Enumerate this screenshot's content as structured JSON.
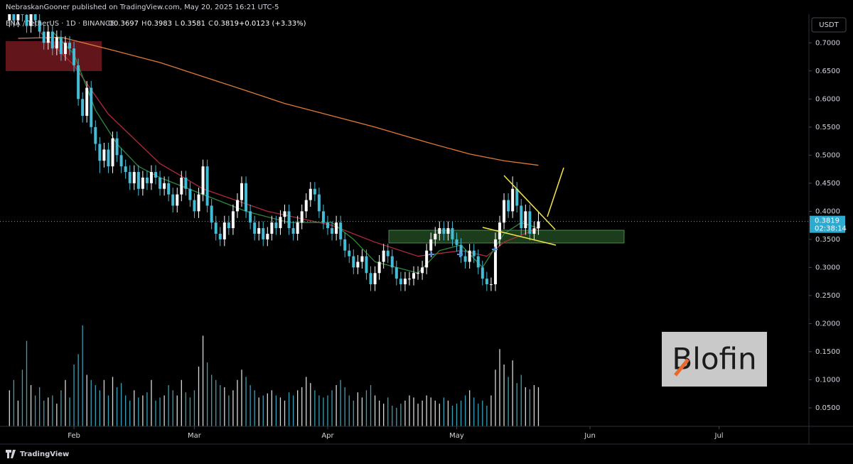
{
  "header": {
    "publisher": "NebraskanGooner published on TradingView.com, May 20, 2025 16:21 UTC-5",
    "ohlc_keys": [
      "O",
      "H",
      "L",
      "C"
    ],
    "change": "+0.0123 (+3.33%)",
    "currency": "USDT",
    "countdown": "02:38:14",
    "brand": "TradingView",
    "logo_text": "Blofin"
  },
  "chart_data": {
    "type": "candlestick",
    "symbol": "ENA / TetherUS · 1D · BINANCE",
    "x": [
      -15,
      -14,
      -13,
      -12,
      -11,
      -10,
      -9,
      -8,
      -7,
      -6,
      -5,
      -4,
      -3,
      -2,
      -1,
      0,
      1,
      2,
      3,
      4,
      5,
      6,
      7,
      8,
      9,
      10,
      11,
      12,
      13,
      14,
      15,
      16,
      17,
      18,
      19,
      20,
      21,
      22,
      23,
      24,
      25,
      26,
      27,
      28,
      29,
      30,
      31,
      32,
      33,
      34,
      35,
      36,
      37,
      38,
      39,
      40,
      41,
      42,
      43,
      44,
      45,
      46,
      47,
      48,
      49,
      50,
      51,
      52,
      53,
      54,
      55,
      56,
      57,
      58,
      59,
      60,
      61,
      62,
      63,
      64,
      65,
      66,
      67,
      68,
      69,
      70,
      71,
      72,
      73,
      74,
      75,
      76,
      77,
      78,
      79,
      80,
      81,
      82,
      83,
      84,
      85,
      86,
      87,
      88,
      89,
      90,
      91,
      92,
      93,
      94,
      95,
      96,
      97,
      98,
      99,
      100,
      101,
      102,
      103,
      104,
      105,
      106,
      107,
      108
    ],
    "open": [
      0.74,
      0.76,
      0.74,
      0.78,
      0.75,
      0.73,
      0.76,
      0.74,
      0.72,
      0.7,
      0.72,
      0.69,
      0.71,
      0.68,
      0.7,
      0.69,
      0.66,
      0.6,
      0.57,
      0.62,
      0.55,
      0.52,
      0.49,
      0.51,
      0.48,
      0.53,
      0.5,
      0.48,
      0.47,
      0.45,
      0.47,
      0.44,
      0.46,
      0.45,
      0.47,
      0.46,
      0.44,
      0.45,
      0.43,
      0.41,
      0.43,
      0.46,
      0.44,
      0.42,
      0.4,
      0.43,
      0.48,
      0.41,
      0.38,
      0.36,
      0.35,
      0.38,
      0.37,
      0.4,
      0.42,
      0.45,
      0.4,
      0.38,
      0.36,
      0.37,
      0.35,
      0.36,
      0.38,
      0.37,
      0.39,
      0.4,
      0.37,
      0.36,
      0.38,
      0.4,
      0.42,
      0.44,
      0.43,
      0.4,
      0.38,
      0.37,
      0.36,
      0.38,
      0.35,
      0.33,
      0.32,
      0.3,
      0.31,
      0.32,
      0.29,
      0.27,
      0.29,
      0.31,
      0.33,
      0.32,
      0.3,
      0.28,
      0.27,
      0.28,
      0.28,
      0.29,
      0.29,
      0.3,
      0.33,
      0.35,
      0.36,
      0.37,
      0.36,
      0.37,
      0.35,
      0.34,
      0.32,
      0.31,
      0.33,
      0.32,
      0.3,
      0.28,
      0.27,
      0.27,
      0.35,
      0.38,
      0.42,
      0.4,
      0.44,
      0.41,
      0.37,
      0.4,
      0.36,
      0.3697
    ],
    "high": [
      0.772,
      0.772,
      0.792,
      0.792,
      0.762,
      0.772,
      0.772,
      0.752,
      0.732,
      0.732,
      0.732,
      0.722,
      0.722,
      0.712,
      0.712,
      0.702,
      0.672,
      0.612,
      0.632,
      0.632,
      0.562,
      0.532,
      0.522,
      0.522,
      0.542,
      0.542,
      0.512,
      0.492,
      0.482,
      0.482,
      0.482,
      0.472,
      0.472,
      0.482,
      0.482,
      0.472,
      0.462,
      0.462,
      0.442,
      0.442,
      0.472,
      0.472,
      0.452,
      0.432,
      0.442,
      0.492,
      0.492,
      0.422,
      0.392,
      0.372,
      0.392,
      0.392,
      0.412,
      0.432,
      0.462,
      0.462,
      0.412,
      0.392,
      0.382,
      0.382,
      0.372,
      0.392,
      0.392,
      0.402,
      0.412,
      0.412,
      0.382,
      0.392,
      0.412,
      0.432,
      0.452,
      0.452,
      0.442,
      0.412,
      0.392,
      0.382,
      0.392,
      0.392,
      0.362,
      0.342,
      0.332,
      0.322,
      0.332,
      0.332,
      0.302,
      0.302,
      0.322,
      0.342,
      0.342,
      0.332,
      0.312,
      0.292,
      0.292,
      0.292,
      0.302,
      0.302,
      0.312,
      0.342,
      0.362,
      0.372,
      0.382,
      0.382,
      0.382,
      0.382,
      0.362,
      0.352,
      0.332,
      0.342,
      0.342,
      0.332,
      0.312,
      0.292,
      0.282,
      0.362,
      0.392,
      0.432,
      0.432,
      0.462,
      0.452,
      0.422,
      0.412,
      0.412,
      0.382,
      0.3983
    ],
    "low": [
      0.728,
      0.728,
      0.728,
      0.738,
      0.718,
      0.718,
      0.728,
      0.708,
      0.688,
      0.688,
      0.678,
      0.678,
      0.668,
      0.668,
      0.678,
      0.648,
      0.588,
      0.558,
      0.558,
      0.538,
      0.508,
      0.468,
      0.478,
      0.468,
      0.468,
      0.488,
      0.468,
      0.458,
      0.438,
      0.438,
      0.428,
      0.428,
      0.438,
      0.438,
      0.448,
      0.428,
      0.428,
      0.418,
      0.398,
      0.398,
      0.418,
      0.428,
      0.408,
      0.388,
      0.388,
      0.418,
      0.398,
      0.368,
      0.348,
      0.338,
      0.338,
      0.358,
      0.358,
      0.388,
      0.408,
      0.388,
      0.368,
      0.348,
      0.348,
      0.338,
      0.338,
      0.348,
      0.358,
      0.358,
      0.378,
      0.358,
      0.348,
      0.348,
      0.368,
      0.388,
      0.408,
      0.418,
      0.388,
      0.368,
      0.358,
      0.348,
      0.348,
      0.338,
      0.318,
      0.308,
      0.288,
      0.288,
      0.298,
      0.278,
      0.258,
      0.258,
      0.278,
      0.298,
      0.308,
      0.288,
      0.268,
      0.258,
      0.258,
      0.268,
      0.268,
      0.278,
      0.278,
      0.288,
      0.318,
      0.338,
      0.348,
      0.348,
      0.348,
      0.338,
      0.328,
      0.308,
      0.298,
      0.298,
      0.308,
      0.288,
      0.268,
      0.258,
      0.258,
      0.258,
      0.338,
      0.368,
      0.388,
      0.388,
      0.398,
      0.358,
      0.358,
      0.348,
      0.348,
      0.3581
    ],
    "close": [
      0.76,
      0.74,
      0.78,
      0.75,
      0.73,
      0.76,
      0.74,
      0.72,
      0.7,
      0.72,
      0.69,
      0.71,
      0.68,
      0.7,
      0.69,
      0.66,
      0.6,
      0.57,
      0.62,
      0.55,
      0.52,
      0.49,
      0.51,
      0.48,
      0.53,
      0.5,
      0.48,
      0.47,
      0.45,
      0.47,
      0.44,
      0.46,
      0.45,
      0.47,
      0.46,
      0.44,
      0.45,
      0.43,
      0.41,
      0.43,
      0.46,
      0.44,
      0.42,
      0.4,
      0.43,
      0.48,
      0.41,
      0.38,
      0.36,
      0.35,
      0.38,
      0.37,
      0.4,
      0.42,
      0.45,
      0.4,
      0.38,
      0.36,
      0.37,
      0.35,
      0.36,
      0.38,
      0.37,
      0.39,
      0.4,
      0.37,
      0.36,
      0.38,
      0.4,
      0.42,
      0.44,
      0.43,
      0.4,
      0.38,
      0.37,
      0.36,
      0.38,
      0.35,
      0.33,
      0.32,
      0.3,
      0.31,
      0.32,
      0.29,
      0.27,
      0.29,
      0.31,
      0.33,
      0.32,
      0.3,
      0.28,
      0.27,
      0.28,
      0.28,
      0.29,
      0.29,
      0.3,
      0.33,
      0.35,
      0.36,
      0.37,
      0.36,
      0.37,
      0.35,
      0.34,
      0.32,
      0.31,
      0.33,
      0.32,
      0.3,
      0.28,
      0.27,
      0.27,
      0.35,
      0.38,
      0.42,
      0.4,
      0.44,
      0.41,
      0.37,
      0.4,
      0.36,
      0.3697,
      0.3819
    ],
    "volume": [
      35,
      45,
      25,
      55,
      83,
      40,
      30,
      38,
      25,
      28,
      30,
      22,
      35,
      45,
      28,
      60,
      70,
      98,
      50,
      45,
      40,
      35,
      45,
      30,
      48,
      38,
      42,
      30,
      25,
      35,
      28,
      30,
      33,
      45,
      25,
      28,
      30,
      40,
      35,
      30,
      45,
      33,
      28,
      35,
      58,
      88,
      62,
      50,
      45,
      40,
      38,
      30,
      35,
      45,
      55,
      48,
      40,
      35,
      28,
      30,
      32,
      35,
      30,
      28,
      25,
      33,
      30,
      35,
      38,
      48,
      42,
      35,
      30,
      28,
      30,
      35,
      40,
      45,
      38,
      30,
      25,
      33,
      28,
      35,
      40,
      30,
      25,
      22,
      28,
      20,
      18,
      22,
      25,
      30,
      28,
      22,
      25,
      30,
      28,
      25,
      22,
      28,
      25,
      20,
      22,
      25,
      30,
      35,
      28,
      22,
      25,
      20,
      30,
      55,
      75,
      60,
      48,
      64,
      42,
      50,
      38,
      36,
      40,
      38
    ],
    "up_color": "#ffffff",
    "down_color": "#45bcd6",
    "lines": [
      {
        "color": "#e07a35",
        "x": [
          -13,
          -3,
          9,
          20,
          30,
          40,
          49,
          60,
          70,
          82,
          92,
          100,
          108
        ],
        "values": [
          0.708,
          0.71,
          0.687,
          0.665,
          0.64,
          0.615,
          0.592,
          0.57,
          0.55,
          0.523,
          0.502,
          0.49,
          0.482
        ]
      },
      {
        "color": "#b3283a",
        "x": [
          -8,
          0,
          8,
          20,
          30,
          45,
          60,
          70,
          80,
          90,
          96,
          100,
          108
        ],
        "values": [
          0.72,
          0.66,
          0.573,
          0.485,
          0.44,
          0.4,
          0.375,
          0.345,
          0.32,
          0.33,
          0.32,
          0.345,
          0.37
        ]
      },
      {
        "color": "#2e8b3a",
        "x": [
          -5,
          0,
          5,
          10,
          15,
          20,
          30,
          40,
          50,
          60,
          65,
          70,
          75,
          80,
          85,
          90,
          95,
          100,
          104,
          108
        ],
        "values": [
          0.72,
          0.68,
          0.58,
          0.52,
          0.48,
          0.46,
          0.43,
          0.4,
          0.38,
          0.38,
          0.35,
          0.31,
          0.3,
          0.29,
          0.33,
          0.34,
          0.3,
          0.36,
          0.38,
          0.37
        ]
      }
    ],
    "xlim": [
      -17.2,
      170.9
    ],
    "xticks": [
      {
        "value": 0,
        "label": "Feb"
      },
      {
        "value": 28,
        "label": "Mar"
      },
      {
        "value": 59,
        "label": "Apr"
      },
      {
        "value": 89,
        "label": "May"
      },
      {
        "value": 120,
        "label": "Jun"
      },
      {
        "value": 150,
        "label": "Jul"
      }
    ],
    "ylim": [
      0.017,
      0.751
    ],
    "yticks": [
      {
        "value": 0.05,
        "label": "0.0500"
      },
      {
        "value": 0.1,
        "label": "0.1000"
      },
      {
        "value": 0.15,
        "label": "0.1500"
      },
      {
        "value": 0.2,
        "label": "0.2000"
      },
      {
        "value": 0.25,
        "label": "0.2500"
      },
      {
        "value": 0.3,
        "label": "0.3000"
      },
      {
        "value": 0.35,
        "label": "0.3500"
      },
      {
        "value": 0.4,
        "label": "0.4000"
      },
      {
        "value": 0.45,
        "label": "0.4500"
      },
      {
        "value": 0.5,
        "label": "0.5000"
      },
      {
        "value": 0.55,
        "label": "0.5500"
      },
      {
        "value": 0.6,
        "label": "0.6000"
      },
      {
        "value": 0.65,
        "label": "0.6500"
      },
      {
        "value": 0.7,
        "label": "0.7000"
      }
    ],
    "y2lim": [
      0,
      400
    ],
    "grid": false
  }
}
